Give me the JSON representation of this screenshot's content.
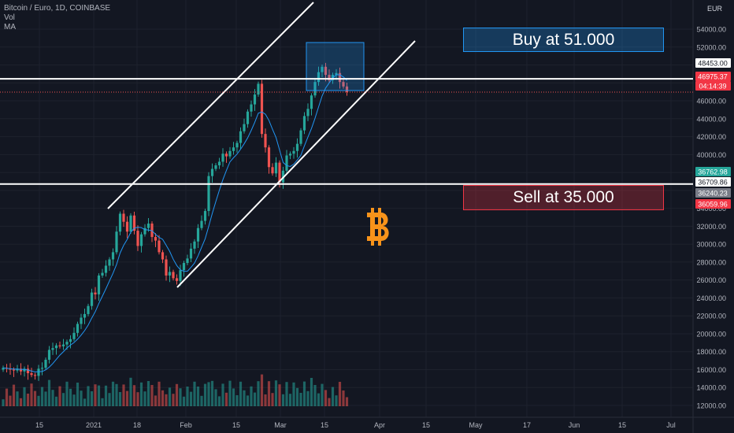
{
  "legend": {
    "title": "Bitcoin / Euro, 1D, COINBASE",
    "vol": "Vol",
    "ma": "MA"
  },
  "currency_label": "EUR",
  "callouts": {
    "buy": "Buy at 51.000",
    "sell": "Sell at 35.000"
  },
  "icon": "bitcoin-logo",
  "colors": {
    "background": "#131722",
    "up": "#26a69a",
    "down": "#ef5350",
    "ma": "#2196f3",
    "buy_box": "#2196f3",
    "sell_box": "#f23645",
    "price_tag": "#f23645"
  },
  "chart_data": {
    "type": "candlestick",
    "symbol": "Bitcoin / Euro",
    "interval": "1D",
    "exchange": "COINBASE",
    "y_axis_ticks": [
      12000,
      14000,
      16000,
      18000,
      20000,
      22000,
      24000,
      26000,
      28000,
      30000,
      32000,
      34000,
      36000,
      38000,
      40000,
      42000,
      44000,
      46000,
      48000,
      50000,
      52000,
      54000
    ],
    "y_tick_labels": [
      "12000.00",
      "14000.00",
      "16000.00",
      "18000.00",
      "20000.00",
      "22000.00",
      "24000.00",
      "26000.00",
      "28000.00",
      "30000.00",
      "32000.00",
      "34000.00",
      "36000.00",
      "38000.00",
      "40000.00",
      "42000.00",
      "44000.00",
      "46000.00",
      "48000.00",
      "50000.00",
      "52000.00",
      "54000.00"
    ],
    "ylim": [
      11000,
      55500
    ],
    "x_axis_ticks": [
      "15",
      "2021",
      "18",
      "Feb",
      "15",
      "Mar",
      "15",
      "Apr",
      "15",
      "May",
      "17",
      "Jun",
      "15",
      "Jul"
    ],
    "price_labels": {
      "resistance": "48453.00",
      "last_price": "46975.37",
      "countdown": "04:14:39",
      "label_a": "36762.98",
      "label_b": "36709.86",
      "label_c": "36240.23",
      "label_d": "36059.96"
    },
    "horizontal_levels": [
      48453.0,
      36709.86,
      46975.37
    ],
    "close_series": [
      16200,
      16100,
      16000,
      15900,
      16100,
      15800,
      16100,
      15600,
      15400,
      15300,
      16100,
      16200,
      17100,
      18200,
      18400,
      18700,
      18600,
      18800,
      19100,
      19400,
      20100,
      21100,
      21800,
      22200,
      23100,
      24600,
      24400,
      26500,
      26800,
      27600,
      28300,
      29100,
      31400,
      33400,
      32500,
      31400,
      33200,
      31500,
      29800,
      31100,
      31800,
      32300,
      30800,
      30400,
      29100,
      28300,
      26500,
      26900,
      26200,
      25900,
      27100,
      27900,
      28400,
      29500,
      30300,
      31800,
      32600,
      33700,
      37600,
      38400,
      38800,
      39200,
      40100,
      39800,
      40400,
      40800,
      41300,
      42600,
      43400,
      44800,
      45600,
      46700,
      47900,
      42300,
      40800,
      38600,
      37900,
      39100,
      36900,
      38200,
      39900,
      40100,
      40400,
      41200,
      42700,
      44300,
      45100,
      46600,
      48100,
      49200,
      49800,
      48900,
      48300,
      48900,
      49100,
      48100,
      47600,
      46975
    ],
    "volume_note": "volume histogram shown at bottom (values not labeled)"
  }
}
